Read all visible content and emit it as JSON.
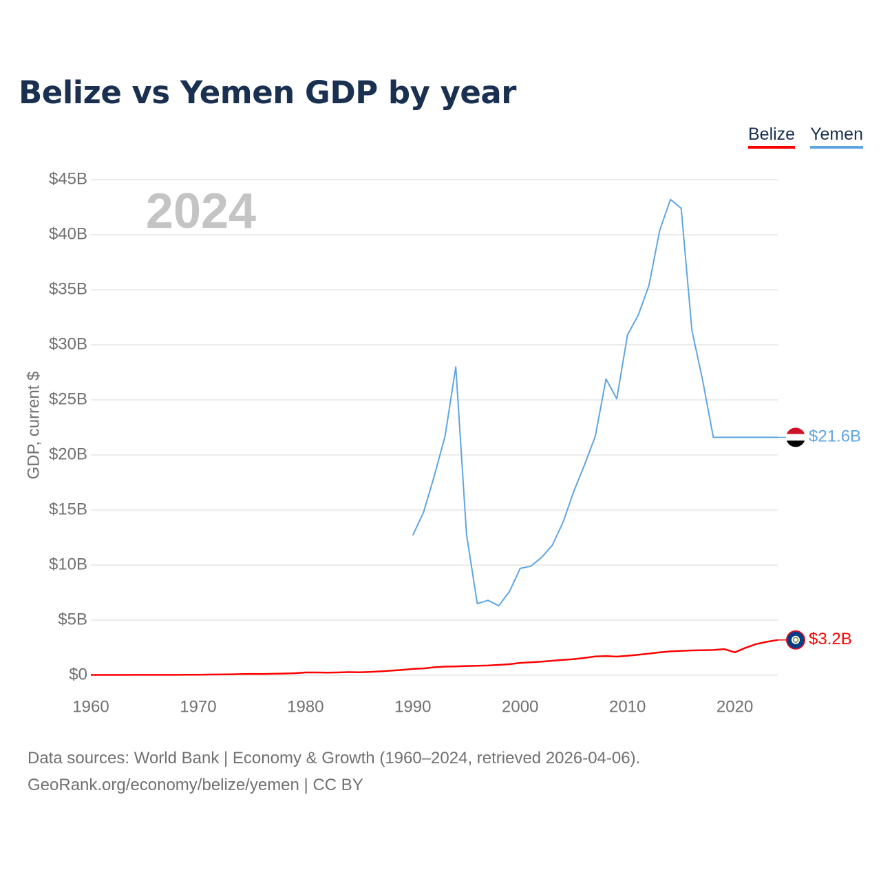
{
  "title": "Belize vs Yemen GDP by year",
  "legend": {
    "belize": "Belize",
    "yemen": "Yemen"
  },
  "year_watermark": "2024",
  "source_line1": "Data sources: World Bank | Economy & Growth (1960–2024, retrieved 2026-04-06).",
  "source_line2": "GeoRank.org/economy/belize/yemen | CC BY",
  "chart_data": {
    "type": "line",
    "title": "Belize vs Yemen GDP by year",
    "xlabel": "",
    "ylabel": "GDP, current $",
    "xlim": [
      1960,
      2024
    ],
    "ylim": [
      0,
      45
    ],
    "y_unit": "billion US$",
    "x_ticks": [
      1960,
      1970,
      1980,
      1990,
      2000,
      2010,
      2020
    ],
    "y_ticks": [
      0,
      5,
      10,
      15,
      20,
      25,
      30,
      35,
      40,
      45
    ],
    "y_tick_labels": [
      "$0",
      "$5B",
      "$10B",
      "$15B",
      "$20B",
      "$25B",
      "$30B",
      "$35B",
      "$40B",
      "$45B"
    ],
    "grid": true,
    "legend_position": "top-right",
    "series": [
      {
        "name": "Belize",
        "color": "#ff0000",
        "end_label": "$3.2B",
        "x": [
          1960,
          1961,
          1962,
          1963,
          1964,
          1965,
          1966,
          1967,
          1968,
          1969,
          1970,
          1971,
          1972,
          1973,
          1974,
          1975,
          1976,
          1977,
          1978,
          1979,
          1980,
          1981,
          1982,
          1983,
          1984,
          1985,
          1986,
          1987,
          1988,
          1989,
          1990,
          1991,
          1992,
          1993,
          1994,
          1995,
          1996,
          1997,
          1998,
          1999,
          2000,
          2001,
          2002,
          2003,
          2004,
          2005,
          2006,
          2007,
          2008,
          2009,
          2010,
          2011,
          2012,
          2013,
          2014,
          2015,
          2016,
          2017,
          2018,
          2019,
          2020,
          2021,
          2022,
          2023,
          2024
        ],
        "values": [
          0.03,
          0.03,
          0.03,
          0.03,
          0.04,
          0.04,
          0.04,
          0.04,
          0.04,
          0.05,
          0.05,
          0.06,
          0.07,
          0.08,
          0.1,
          0.12,
          0.11,
          0.13,
          0.15,
          0.18,
          0.25,
          0.25,
          0.23,
          0.25,
          0.28,
          0.27,
          0.3,
          0.35,
          0.41,
          0.48,
          0.57,
          0.62,
          0.72,
          0.78,
          0.8,
          0.84,
          0.86,
          0.88,
          0.94,
          1.0,
          1.12,
          1.17,
          1.24,
          1.31,
          1.39,
          1.46,
          1.57,
          1.7,
          1.74,
          1.69,
          1.77,
          1.86,
          1.96,
          2.08,
          2.16,
          2.21,
          2.25,
          2.27,
          2.29,
          2.37,
          2.08,
          2.49,
          2.83,
          3.04,
          3.2
        ]
      },
      {
        "name": "Yemen",
        "color": "#5fa5e3",
        "end_label": "$21.6B",
        "x": [
          1990,
          1991,
          1992,
          1993,
          1994,
          1995,
          1996,
          1997,
          1998,
          1999,
          2000,
          2001,
          2002,
          2003,
          2004,
          2005,
          2006,
          2007,
          2008,
          2009,
          2010,
          2011,
          2012,
          2013,
          2014,
          2015,
          2016,
          2017,
          2018,
          2019,
          2020,
          2021,
          2022,
          2023,
          2024
        ],
        "values": [
          12.7,
          14.8,
          18.1,
          21.7,
          28.0,
          12.8,
          6.5,
          6.8,
          6.3,
          7.6,
          9.7,
          9.9,
          10.7,
          11.8,
          13.9,
          16.7,
          19.1,
          21.7,
          26.9,
          25.1,
          30.9,
          32.7,
          35.4,
          40.4,
          43.2,
          42.4,
          31.3,
          26.8,
          21.6,
          21.6,
          21.6,
          21.6,
          21.6,
          21.6,
          21.6
        ]
      }
    ]
  }
}
